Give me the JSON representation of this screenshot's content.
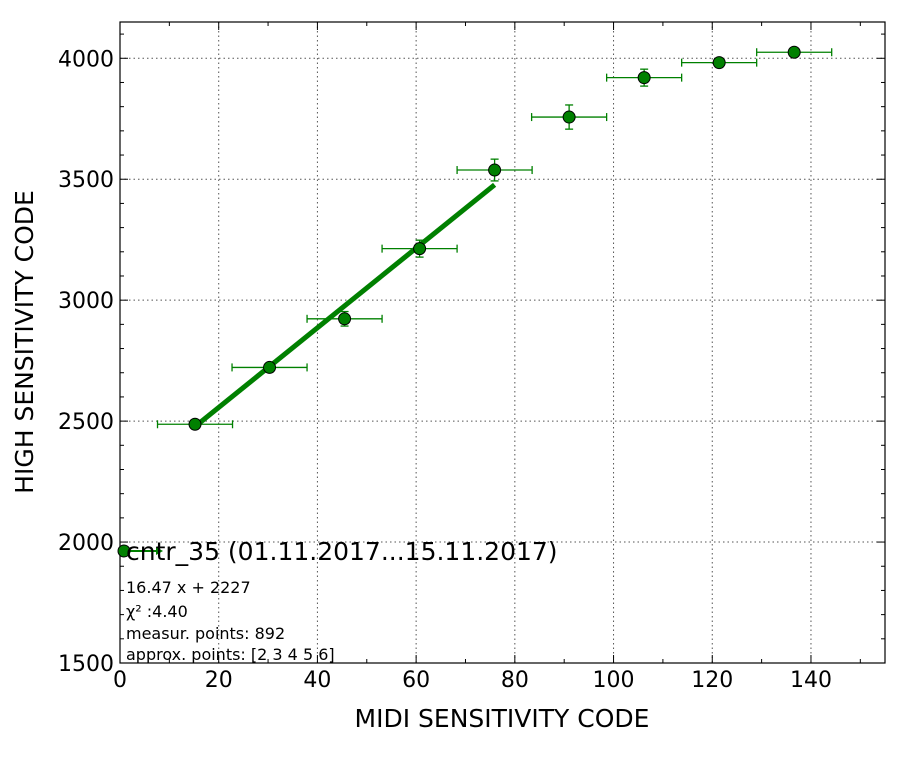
{
  "chart_data": {
    "type": "scatter",
    "title": "",
    "xlabel": "MIDI SENSITIVITY CODE",
    "ylabel": "HIGH SENSITIVITY CODE",
    "xlim": [
      0,
      155
    ],
    "ylim": [
      1500,
      4150
    ],
    "x_ticks": [
      0,
      20,
      40,
      60,
      80,
      100,
      120,
      140
    ],
    "y_ticks": [
      1500,
      2000,
      2500,
      3000,
      3500,
      4000
    ],
    "grid": true,
    "color": "#008000",
    "legend_label": "cntr_35 (01.11.2017...15.11.2017)",
    "legend_placement": "lower-left",
    "series": [
      {
        "name": "cntr_35 (01.11.2017...15.11.2017)",
        "points": [
          {
            "x": 15.2,
            "y": 2487,
            "xerr": 7.6,
            "yerr": 10
          },
          {
            "x": 30.3,
            "y": 2722,
            "xerr": 7.6,
            "yerr": 15
          },
          {
            "x": 45.5,
            "y": 2923,
            "xerr": 7.6,
            "yerr": 30
          },
          {
            "x": 60.7,
            "y": 3213,
            "xerr": 7.6,
            "yerr": 35
          },
          {
            "x": 75.9,
            "y": 3538,
            "xerr": 7.6,
            "yerr": 45
          },
          {
            "x": 91.0,
            "y": 3757,
            "xerr": 7.6,
            "yerr": 50
          },
          {
            "x": 106.2,
            "y": 3920,
            "xerr": 7.6,
            "yerr": 35
          },
          {
            "x": 121.4,
            "y": 3982,
            "xerr": 7.6,
            "yerr": 10
          },
          {
            "x": 136.6,
            "y": 4025,
            "xerr": 7.6,
            "yerr": 10
          }
        ]
      }
    ],
    "fit": {
      "slope": 16.47,
      "intercept": 2227,
      "x_range": [
        15.2,
        75.9
      ]
    },
    "annotations": [
      "16.47 x + 2227",
      "χ² :4.40",
      "measur. points: 892",
      "approx. points: [2 3 4 5 6]"
    ]
  }
}
